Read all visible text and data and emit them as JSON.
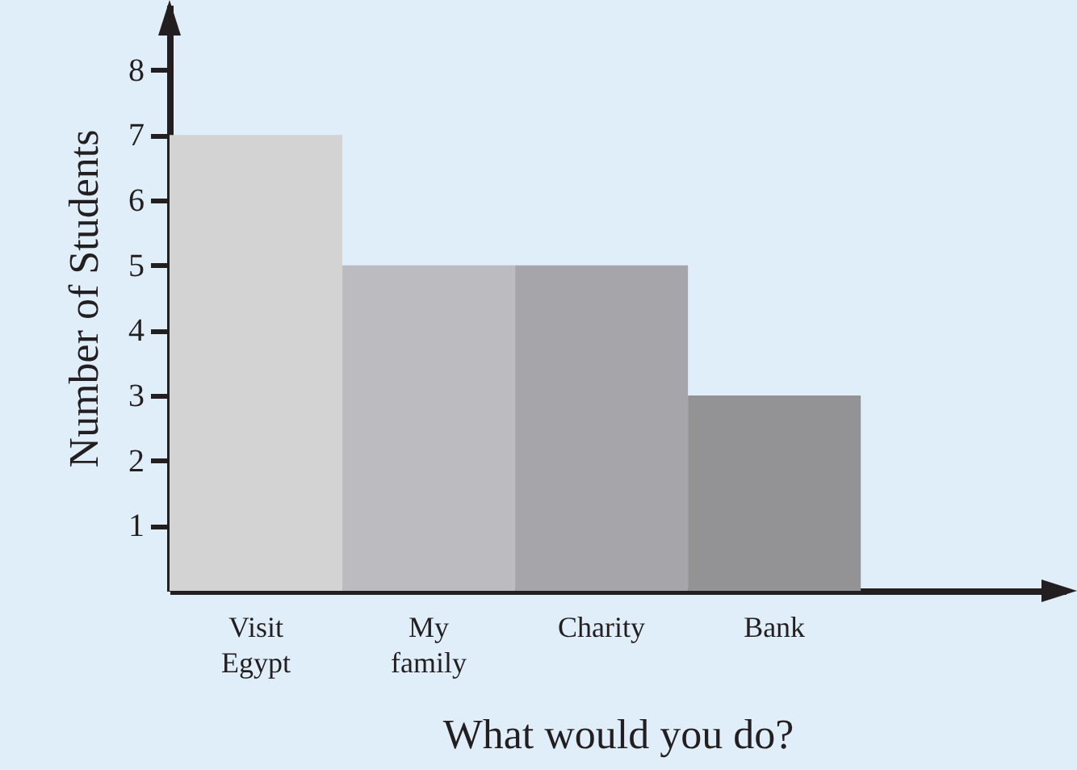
{
  "chart_data": {
    "type": "bar",
    "xlabel": "What would you do?",
    "ylabel": "Number of Students",
    "categories": [
      "Visit Egypt",
      "My family",
      "Charity",
      "Bank"
    ],
    "values": [
      7,
      5,
      5,
      3
    ],
    "colors": [
      "#d3d3d3",
      "#bcbcc0",
      "#a6a6aa",
      "#939396"
    ],
    "ylim": [
      0,
      9
    ],
    "yticks": [
      1,
      2,
      3,
      4,
      5,
      6,
      7,
      8
    ],
    "grid": false
  }
}
